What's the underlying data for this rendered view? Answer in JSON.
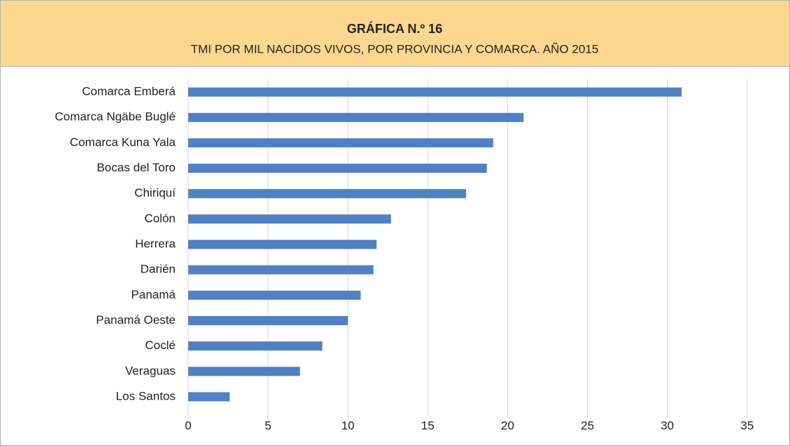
{
  "chart_data": {
    "type": "barh",
    "title": "GRÁFICA N.º 16",
    "subtitle": "TMI POR MIL NACIDOS VIVOS, POR PROVINCIA Y COMARCA. AÑO 2015",
    "categories": [
      "Comarca Emberá",
      "Comarca Ngäbe Buglé",
      "Comarca Kuna Yala",
      "Bocas del Toro",
      "Chiriquí",
      "Colón",
      "Herrera",
      "Darién",
      "Panamá",
      "Panamá Oeste",
      "Coclé",
      "Veraguas",
      "Los Santos"
    ],
    "values": [
      30.9,
      21.0,
      19.1,
      18.7,
      17.4,
      12.7,
      11.8,
      11.6,
      10.8,
      10.0,
      8.4,
      7.0,
      2.6
    ],
    "color": "#4f81c7",
    "xlim": [
      0,
      35
    ],
    "xticks": [
      0,
      5,
      10,
      15,
      20,
      25,
      30,
      35
    ],
    "grid": true
  }
}
